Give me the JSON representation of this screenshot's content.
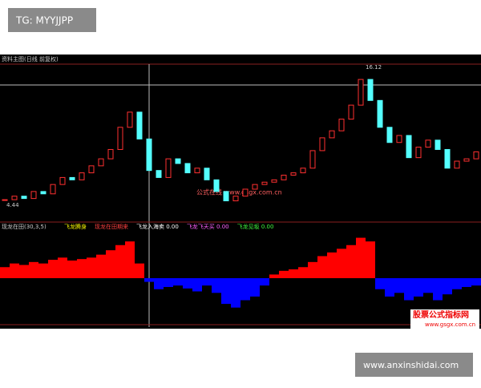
{
  "page": {
    "tag": "TG: MYYJJPP",
    "footer": "www.anxinshidai.com",
    "watermark_center": "公式在线 www.gsgx.com.cn",
    "watermark_logo": "股票公式指标网",
    "watermark_url": "www.gsgx.com.cn"
  },
  "chart_data": [
    {
      "type": "candlestick",
      "title": "资料主图(日线 前复权)",
      "low_label": "4.44",
      "high_label": "16.12",
      "up_color": "#ff3030",
      "down_color": "#54ffff",
      "ylim": [
        4,
        16.5
      ],
      "values": [
        5.3,
        5.6,
        5.4,
        6.0,
        5.8,
        6.6,
        7.2,
        7.0,
        7.6,
        8.2,
        8.8,
        9.6,
        11.5,
        12.8,
        10.5,
        7.8,
        7.2,
        8.8,
        8.4,
        7.6,
        8.0,
        7.0,
        6.0,
        5.2,
        5.6,
        6.2,
        6.6,
        6.8,
        7.0,
        7.4,
        7.6,
        8.0,
        9.5,
        10.6,
        11.2,
        12.2,
        13.4,
        15.6,
        13.8,
        11.5,
        10.2,
        10.8,
        8.9,
        9.8,
        10.4,
        9.6,
        8.0,
        8.6,
        8.8,
        9.4
      ]
    },
    {
      "type": "bar",
      "title": "现龙在田(30,3,5)",
      "legend": [
        "飞龙腾身",
        "现龙在田期来",
        "飞龙入海卖 0.00",
        "飞龙飞天买 0.00",
        "飞龙见坂 0.00"
      ],
      "legend_colors": [
        "#ffff00",
        "#ff4040",
        "#ffffff",
        "#ff60ff",
        "#40ff40"
      ],
      "pos_color": "#ff0000",
      "neg_color": "#0000ff",
      "ylim": [
        -60,
        60
      ],
      "values": [
        15,
        20,
        18,
        22,
        20,
        25,
        28,
        24,
        26,
        28,
        32,
        38,
        45,
        50,
        20,
        -5,
        -15,
        -12,
        -10,
        -14,
        -18,
        -10,
        -20,
        -35,
        -40,
        -30,
        -25,
        -10,
        5,
        10,
        12,
        15,
        22,
        30,
        35,
        40,
        45,
        55,
        50,
        -15,
        -25,
        -20,
        -30,
        -25,
        -20,
        -30,
        -22,
        -15,
        -12,
        -10
      ]
    }
  ]
}
